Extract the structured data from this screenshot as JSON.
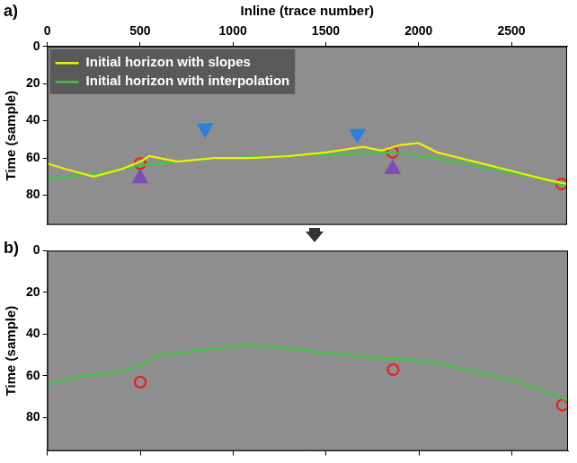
{
  "chart_data": [
    {
      "type": "line",
      "panel": "a)",
      "xlabel": "Inline (trace number)",
      "ylabel": "Time (sample)",
      "xlim": [
        0,
        2800
      ],
      "xticks": [
        0,
        500,
        1000,
        1500,
        2000,
        2500
      ],
      "ylim": [
        0,
        96
      ],
      "yticks": [
        0,
        20,
        40,
        60,
        80
      ],
      "grid": false,
      "legend": "upper left",
      "series": [
        {
          "name": "Initial horizon with slopes",
          "type": "line",
          "color": "#f0f000",
          "line_style": "solid",
          "x": [
            0,
            100,
            250,
            400,
            500,
            550,
            700,
            900,
            1100,
            1300,
            1500,
            1700,
            1800,
            1900,
            2000,
            2100,
            2300,
            2500,
            2700,
            2800
          ],
          "values": [
            63,
            66,
            70,
            66,
            62,
            59,
            62,
            60,
            60,
            59,
            57,
            54,
            56,
            53,
            52,
            57,
            62,
            67,
            72,
            74
          ]
        },
        {
          "name": "Initial horizon with interpolation",
          "type": "line",
          "color": "#3cc83c",
          "line_style": "solid",
          "x": [
            0,
            300,
            500,
            800,
            1200,
            1600,
            1860,
            2100,
            2400,
            2600,
            2800
          ],
          "values": [
            71,
            68,
            64,
            61,
            59,
            58,
            57,
            60,
            66,
            70,
            75
          ]
        },
        {
          "type": "scatter",
          "color": "#e82020",
          "marker": "circle",
          "x": [
            500,
            1860,
            2770
          ],
          "values": [
            63,
            57,
            74
          ]
        },
        {
          "type": "scatter",
          "color": "#2a80d8",
          "marker": "triangle-down",
          "x": [
            850,
            1670
          ],
          "values": [
            44,
            47
          ]
        },
        {
          "type": "scatter",
          "color": "#7b4fb5",
          "marker": "triangle-up",
          "x": [
            500,
            1860
          ],
          "values": [
            71,
            66
          ]
        }
      ]
    },
    {
      "type": "line",
      "panel": "b)",
      "ylabel": "Time (sample)",
      "xlim": [
        0,
        2800
      ],
      "xticks": [
        0,
        500,
        1000,
        1500,
        2000,
        2500
      ],
      "ylim": [
        0,
        96
      ],
      "yticks": [
        0,
        20,
        40,
        60,
        80
      ],
      "grid": false,
      "tick_labels": "y",
      "series": [
        {
          "type": "line",
          "color": "#3cc83c",
          "line_style": "solid",
          "x": [
            0,
            200,
            400,
            500,
            600,
            700,
            900,
            1000,
            1100,
            1300,
            1500,
            1700,
            1900,
            2100,
            2300,
            2500,
            2700,
            2800
          ],
          "values": [
            64,
            60,
            58,
            55,
            50,
            49,
            47,
            46,
            45,
            47,
            49,
            51,
            52,
            54,
            58,
            62,
            68,
            72
          ]
        },
        {
          "type": "scatter",
          "color": "#e82020",
          "marker": "circle",
          "x": [
            500,
            1860,
            2770
          ],
          "values": [
            63,
            57,
            74
          ]
        }
      ]
    }
  ]
}
